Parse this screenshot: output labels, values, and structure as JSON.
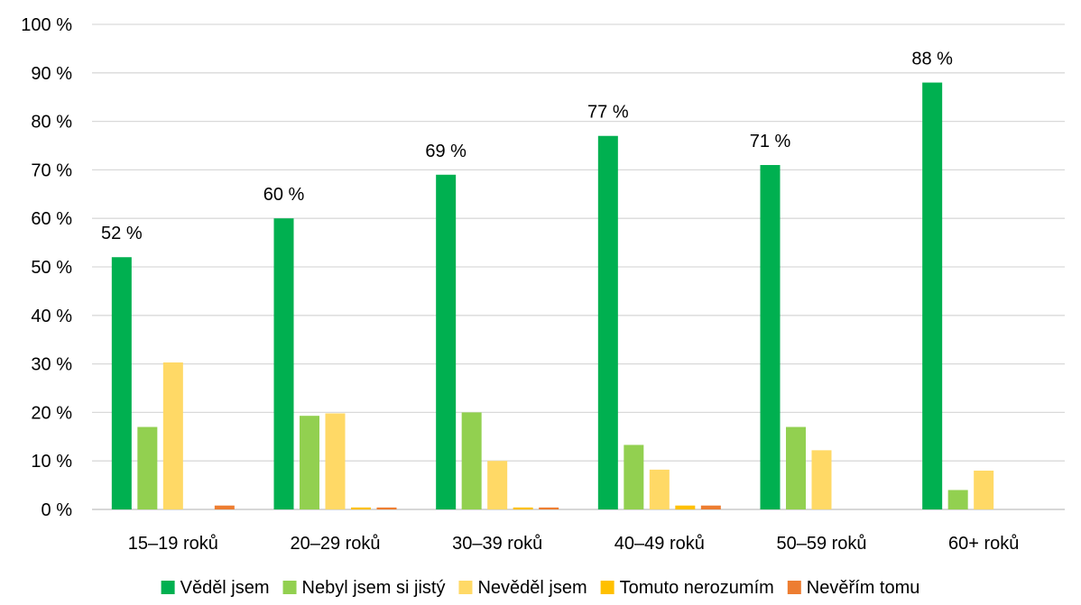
{
  "chart_data": {
    "type": "bar",
    "categories": [
      "15–19 roků",
      "20–29 roků",
      "30–39 roků",
      "40–49 roků",
      "50–59 roků",
      "60+ roků"
    ],
    "series": [
      {
        "name": "Věděl jsem",
        "color": "#00b050",
        "values": [
          52,
          60,
          69,
          77,
          71,
          88
        ],
        "labels": [
          "52 %",
          "60 %",
          "69 %",
          "77 %",
          "71 %",
          "88 %"
        ]
      },
      {
        "name": "Nebyl jsem si jistý",
        "color": "#92d050",
        "values": [
          17,
          19.3,
          20,
          13.3,
          17,
          4
        ]
      },
      {
        "name": "Nevěděl jsem",
        "color": "#ffd966",
        "values": [
          30.3,
          19.8,
          10,
          8.2,
          12.2,
          8
        ]
      },
      {
        "name": "Tomuto nerozumím",
        "color": "#ffc000",
        "values": [
          0,
          0.4,
          0.4,
          0.8,
          0,
          0
        ]
      },
      {
        "name": "Nevěřím tomu",
        "color": "#ed7d31",
        "values": [
          0.8,
          0.4,
          0.4,
          0.8,
          0,
          0
        ]
      }
    ],
    "yticks": [
      "0 %",
      "10 %",
      "20 %",
      "30 %",
      "40 %",
      "50 %",
      "60 %",
      "70 %",
      "80 %",
      "90 %",
      "100 %"
    ],
    "ylim": [
      0,
      100
    ],
    "grid": true,
    "legend_position": "bottom"
  }
}
